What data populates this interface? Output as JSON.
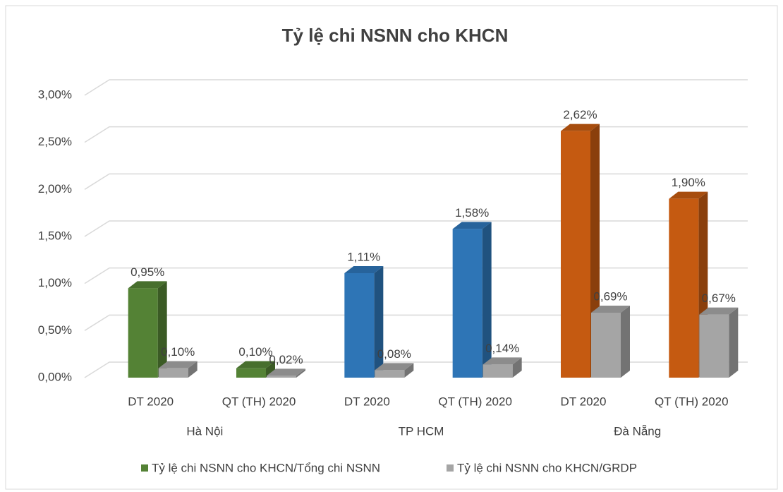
{
  "chart_data": {
    "type": "bar",
    "title": "Tỷ lệ chi NSNN cho KHCN",
    "categories": [
      "DT 2020",
      "QT (TH) 2020",
      "DT 2020",
      "QT (TH) 2020",
      "DT 2020",
      "QT (TH) 2020"
    ],
    "groups": [
      "Hà Nội",
      "TP HCM",
      "Đà Nẵng"
    ],
    "series": [
      {
        "name": "Tỷ lệ chi NSNN cho KHCN/Tổng chi NSNN",
        "colors": [
          "#548235",
          "#548235",
          "#2e75b6",
          "#2e75b6",
          "#c55a11",
          "#c55a11"
        ],
        "values": [
          0.95,
          0.1,
          1.11,
          1.58,
          2.62,
          1.9
        ],
        "value_labels": [
          "0,95%",
          "0,10%",
          "1,11%",
          "1,58%",
          "2,62%",
          "1,90%"
        ]
      },
      {
        "name": "Tỷ lệ chi NSNN cho KHCN/GRDP",
        "color": "#a5a5a5",
        "values": [
          0.1,
          0.02,
          0.08,
          0.14,
          0.69,
          0.67
        ],
        "value_labels": [
          "0,10%",
          "0,02%",
          "0,08%",
          "0,14%",
          "0,69%",
          "0,67%"
        ]
      }
    ],
    "ylim": [
      0,
      3
    ],
    "yticks": [
      {
        "value": 0,
        "label": "0,00%"
      },
      {
        "value": 0.5,
        "label": "0,50%"
      },
      {
        "value": 1,
        "label": "1,00%"
      },
      {
        "value": 1.5,
        "label": "1,50%"
      },
      {
        "value": 2,
        "label": "2,00%"
      },
      {
        "value": 2.5,
        "label": "2,50%"
      },
      {
        "value": 3,
        "label": "3,00%"
      }
    ],
    "grid": true
  }
}
